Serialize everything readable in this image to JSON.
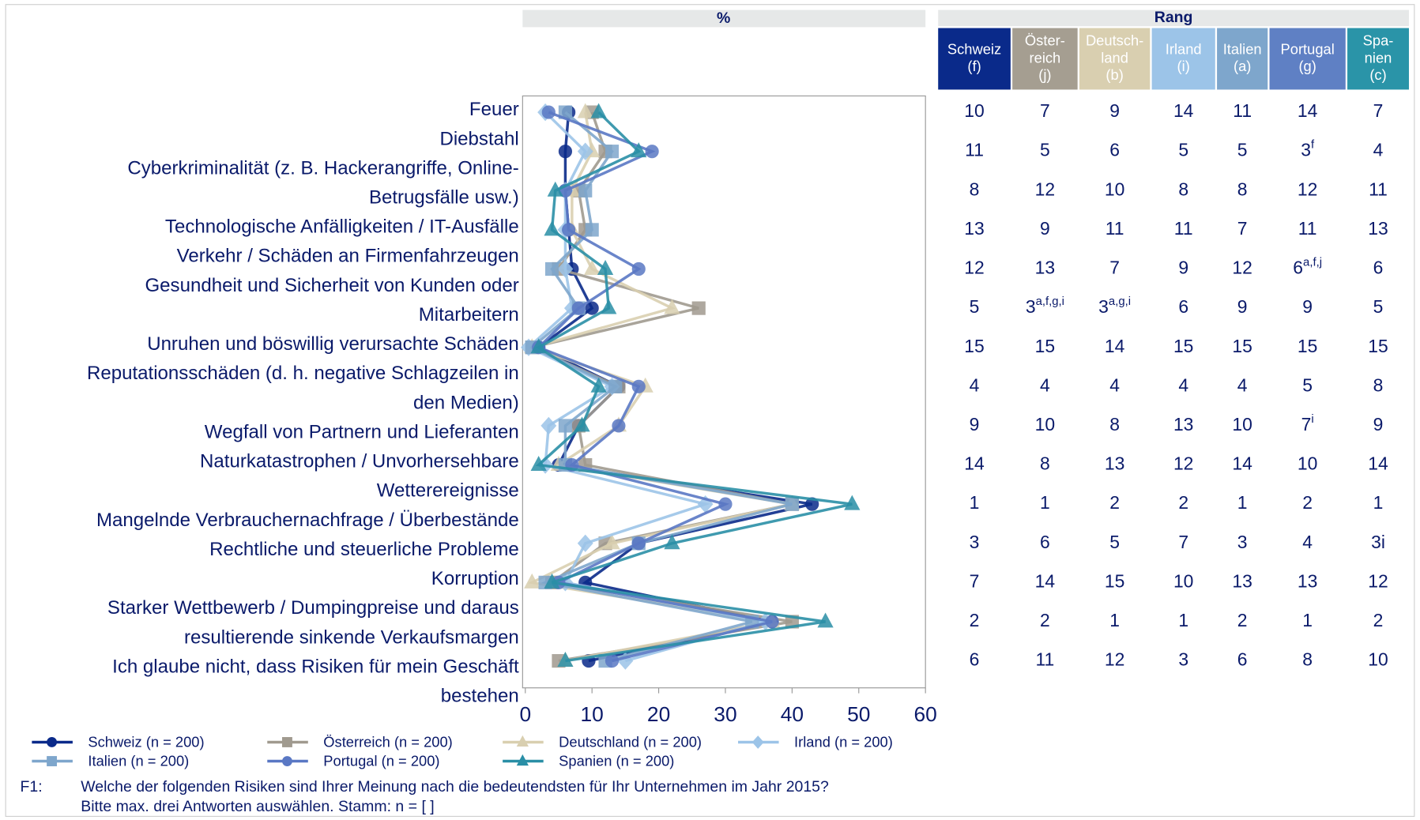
{
  "chart_data": {
    "type": "line",
    "axis_title": "%",
    "table_title": "Rang",
    "categories": [
      [
        "Feuer"
      ],
      [
        "Diebstahl"
      ],
      [
        "Cyberkriminalität (z. B. Hackerangriffe, Online-",
        "Betrugsfälle usw.)"
      ],
      [
        "Technologische Anfälligkeiten / IT-Ausfälle"
      ],
      [
        "Verkehr / Schäden an Firmenfahrzeugen"
      ],
      [
        "Gesundheit und Sicherheit von Kunden oder",
        "Mitarbeitern"
      ],
      [
        "Unruhen und böswillig verursachte Schäden"
      ],
      [
        "Reputationsschäden (d. h. negative Schlagzeilen in",
        "den Medien)"
      ],
      [
        "Wegfall von Partnern und Lieferanten"
      ],
      [
        "Naturkatastrophen / Unvorhersehbare",
        "Wetterereignisse"
      ],
      [
        "Mangelnde Verbrauchernachfrage / Überbestände"
      ],
      [
        "Rechtliche und steuerliche Probleme"
      ],
      [
        "Korruption"
      ],
      [
        "Starker Wettbewerb / Dumpingpreise und daraus",
        "resultierende sinkende Verkaufsmargen"
      ],
      [
        "Ich glaube nicht, dass Risiken für mein Geschäft",
        "bestehen"
      ]
    ],
    "xlim": [
      0,
      60
    ],
    "xticks": [
      0,
      10,
      20,
      30,
      40,
      50,
      60
    ],
    "series": [
      {
        "name": "Schweiz (n = 200)",
        "color": "#0a2a8a",
        "marker": "circle",
        "values": [
          6.5,
          6,
          6,
          6.5,
          7,
          10,
          2,
          14,
          8,
          5,
          43,
          17,
          9,
          37,
          9.5
        ]
      },
      {
        "name": "Österreich (n = 200)",
        "color": "#a09a8f",
        "marker": "square",
        "values": [
          10,
          12,
          8,
          9,
          5,
          26,
          1,
          14,
          8,
          9,
          40,
          12,
          4,
          40,
          5
        ]
      },
      {
        "name": "Deutschland (n = 200)",
        "color": "#d9cfb0",
        "marker": "triangle",
        "values": [
          9,
          10,
          7,
          7,
          10,
          22,
          1,
          18,
          14,
          5,
          40,
          13,
          1,
          37,
          6
        ]
      },
      {
        "name": "Irland (n = 200)",
        "color": "#9cc4e8",
        "marker": "diamond",
        "values": [
          3,
          9,
          6,
          6,
          6,
          7,
          0.5,
          13,
          3.5,
          3,
          27,
          9,
          6,
          36,
          15
        ]
      },
      {
        "name": "Italien (n = 200)",
        "color": "#7ea6cc",
        "marker": "square",
        "values": [
          6,
          13,
          9,
          10,
          4,
          8,
          1,
          13.5,
          6,
          6,
          40,
          17,
          3,
          34,
          12
        ]
      },
      {
        "name": "Portugal (n = 200)",
        "color": "#5a78c4",
        "marker": "circle",
        "values": [
          3.5,
          19,
          6,
          6.5,
          17,
          8,
          2,
          17,
          14,
          7,
          30,
          17,
          5,
          37,
          13
        ]
      },
      {
        "name": "Spanien (n = 200)",
        "color": "#2a8fa6",
        "marker": "triangle",
        "values": [
          11,
          17,
          4.5,
          4,
          12,
          12.5,
          2,
          11,
          8.5,
          2,
          49,
          22,
          4,
          45,
          6
        ]
      }
    ],
    "table": {
      "columns": [
        {
          "lines": [
            "Schweiz",
            "(f)"
          ],
          "color": "#0a2a8a"
        },
        {
          "lines": [
            "Öster-",
            "reich",
            "(j)"
          ],
          "color": "#a59e91"
        },
        {
          "lines": [
            "Deutsch-",
            "land",
            "(b)"
          ],
          "color": "#d9cfb0"
        },
        {
          "lines": [
            "Irland",
            "(i)"
          ],
          "color": "#9cc4e8"
        },
        {
          "lines": [
            "Italien",
            "(a)"
          ],
          "color": "#7ea6cc"
        },
        {
          "lines": [
            "Portugal",
            "(g)"
          ],
          "color": "#5f80c4"
        },
        {
          "lines": [
            "Spa-",
            "nien",
            "(c)"
          ],
          "color": "#2a94a8"
        }
      ],
      "rows": [
        [
          10,
          7,
          9,
          14,
          11,
          14,
          7
        ],
        [
          11,
          5,
          6,
          5,
          5,
          {
            "text": 3,
            "sup": "f"
          },
          4
        ],
        [
          8,
          12,
          10,
          8,
          8,
          12,
          11
        ],
        [
          13,
          9,
          11,
          11,
          7,
          11,
          13
        ],
        [
          12,
          13,
          7,
          9,
          12,
          {
            "text": 6,
            "sup": "a,f,j"
          },
          6
        ],
        [
          5,
          {
            "text": 3,
            "sup": "a,f,g,i"
          },
          {
            "text": 3,
            "sup": "a,g,i"
          },
          6,
          9,
          9,
          5
        ],
        [
          15,
          15,
          14,
          15,
          15,
          15,
          15
        ],
        [
          4,
          4,
          4,
          4,
          4,
          5,
          8
        ],
        [
          9,
          10,
          8,
          13,
          10,
          {
            "text": 7,
            "sup": "i"
          },
          9
        ],
        [
          14,
          8,
          13,
          12,
          14,
          10,
          14
        ],
        [
          1,
          1,
          2,
          2,
          1,
          2,
          1
        ],
        [
          3,
          6,
          5,
          7,
          3,
          4,
          "3i"
        ],
        [
          7,
          14,
          15,
          10,
          13,
          13,
          12
        ],
        [
          2,
          2,
          1,
          1,
          2,
          1,
          2
        ],
        [
          6,
          11,
          12,
          3,
          6,
          8,
          10
        ]
      ]
    },
    "footnote": {
      "label": "F1:",
      "lines": [
        "Welche der folgenden Risiken sind Ihrer Meinung nach die bedeutendsten für Ihr Unternehmen im Jahr 2015?",
        "Bitte max. drei Antworten auswählen. Stamm: n = [ ]"
      ]
    }
  }
}
